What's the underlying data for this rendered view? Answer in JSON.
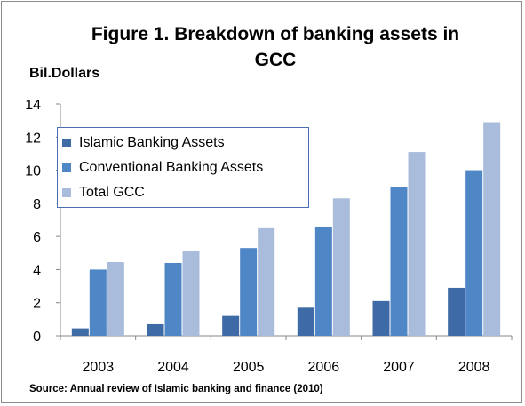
{
  "chart_data": {
    "type": "bar",
    "title": "Figure 1. Breakdown of banking assets in GCC",
    "ylabel": "Bil.Dollars",
    "source": "Source: Annual review of Islamic banking and finance (2010)",
    "categories": [
      "2003",
      "2004",
      "2005",
      "2006",
      "2007",
      "2008"
    ],
    "ylim": [
      0,
      14
    ],
    "yticks": [
      0,
      2,
      4,
      6,
      8,
      10,
      12,
      14
    ],
    "legend_position": "top-left",
    "series": [
      {
        "name": "Islamic Banking Assets",
        "color": "#3e6aa6",
        "values": [
          0.45,
          0.7,
          1.2,
          1.7,
          2.1,
          2.9
        ]
      },
      {
        "name": "Conventional Banking Assets",
        "color": "#4f86c6",
        "values": [
          4.0,
          4.4,
          5.3,
          6.6,
          9.0,
          10.0
        ]
      },
      {
        "name": "Total GCC",
        "color": "#a9bcdc",
        "values": [
          4.45,
          5.1,
          6.5,
          8.3,
          11.1,
          12.9
        ]
      }
    ]
  }
}
